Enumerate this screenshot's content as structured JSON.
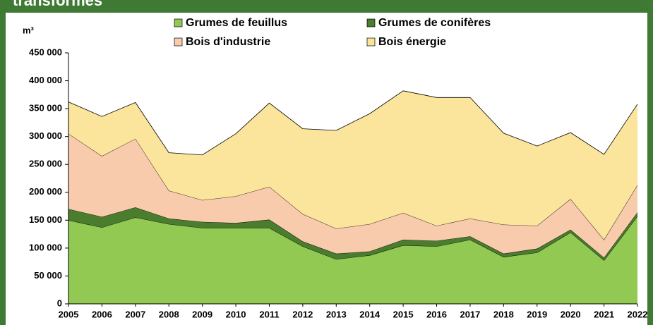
{
  "chart_data": {
    "type": "area",
    "title": "transformés",
    "y_label": "m³",
    "categories": [
      "2005",
      "2006",
      "2007",
      "2008",
      "2009",
      "2010",
      "2011",
      "2012",
      "2013",
      "2014",
      "2015",
      "2016",
      "2017",
      "2018",
      "2019",
      "2020",
      "2021",
      "2022"
    ],
    "series": [
      {
        "name": "Grumes de feuillus",
        "color": "#92c952",
        "values": [
          150000,
          137000,
          155000,
          143000,
          136000,
          136000,
          136000,
          103000,
          80000,
          87000,
          105000,
          103000,
          115000,
          84000,
          92000,
          128000,
          78000,
          157000
        ]
      },
      {
        "name": "Grumes de conifères",
        "color": "#4a7d2e",
        "values": [
          20000,
          19000,
          18000,
          10000,
          11000,
          9000,
          15000,
          9000,
          10000,
          7000,
          10000,
          10000,
          6000,
          6000,
          7000,
          5000,
          5000,
          7000
        ]
      },
      {
        "name": "Bois d'industrie",
        "color": "#f8cbad",
        "values": [
          135000,
          109000,
          123000,
          50000,
          39000,
          48000,
          59000,
          49000,
          45000,
          49000,
          48000,
          27000,
          32000,
          52000,
          41000,
          55000,
          32000,
          49000
        ]
      },
      {
        "name": "Bois énergie",
        "color": "#fbe49b",
        "values": [
          57000,
          71000,
          65000,
          68000,
          81000,
          112000,
          150000,
          153000,
          176000,
          198000,
          219000,
          230000,
          217000,
          164000,
          143000,
          119000,
          153000,
          145000
        ]
      }
    ],
    "ylim": [
      0,
      450000
    ],
    "yticks": [
      0,
      {
        "value": 50000,
        "label": "50 000"
      },
      {
        "value": 100000,
        "label": "100 000"
      },
      {
        "value": 150000,
        "label": "150 000"
      },
      {
        "value": 200000,
        "label": "200 000"
      },
      {
        "value": 250000,
        "label": "250 000"
      },
      {
        "value": 300000,
        "label": "300 000"
      },
      {
        "value": 350000,
        "label": "350 000"
      },
      {
        "value": 400000,
        "label": "400 000"
      },
      {
        "value": 450000,
        "label": "450 000"
      }
    ],
    "stacked": true
  }
}
